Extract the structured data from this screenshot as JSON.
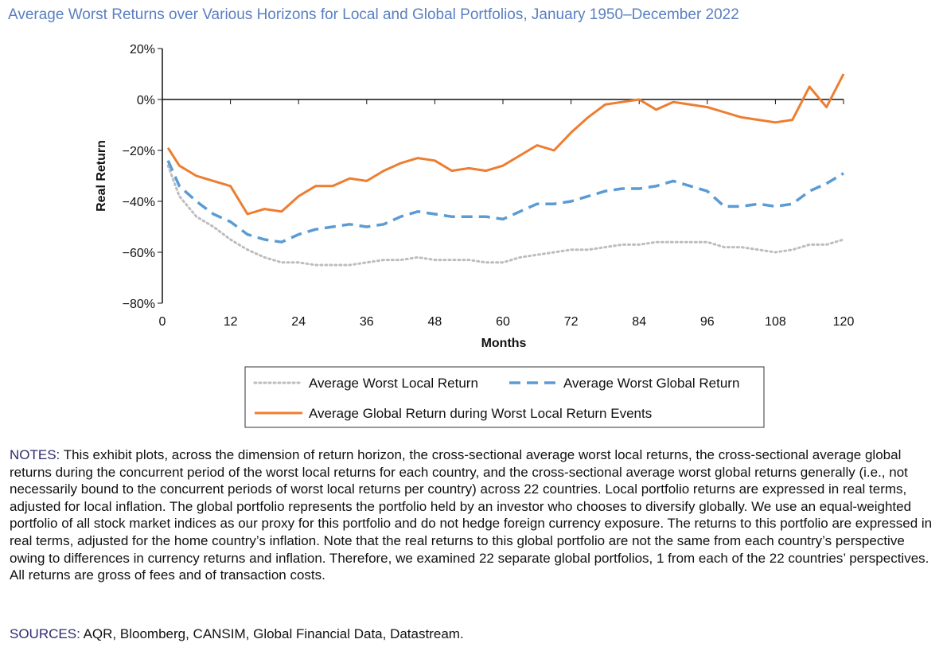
{
  "chart_data": {
    "type": "line",
    "title": "Average Worst Returns over Various Horizons for Local and Global Portfolios, January 1950–December 2022",
    "y_label": "Real Return",
    "x_label": "Months",
    "x": [
      1,
      3,
      6,
      9,
      12,
      15,
      18,
      21,
      24,
      27,
      30,
      33,
      36,
      39,
      42,
      45,
      48,
      51,
      54,
      57,
      60,
      63,
      66,
      69,
      72,
      75,
      78,
      81,
      84,
      87,
      90,
      93,
      96,
      99,
      102,
      105,
      108,
      111,
      114,
      117,
      120
    ],
    "series": [
      {
        "name": "Average Worst Local Return",
        "color": "#bdbdbd",
        "line_style": "dotted",
        "values": [
          -26,
          -38,
          -46,
          -50,
          -55,
          -59,
          -62,
          -64,
          -64,
          -65,
          -65,
          -65,
          -64,
          -63,
          -63,
          -62,
          -63,
          -63,
          -63,
          -64,
          -64,
          -62,
          -61,
          -60,
          -59,
          -59,
          -58,
          -57,
          -57,
          -56,
          -56,
          -56,
          -56,
          -58,
          -58,
          -59,
          -60,
          -59,
          -57,
          -57,
          -55
        ]
      },
      {
        "name": "Average Worst Global Return",
        "color": "#5b9bd5",
        "line_style": "dashed",
        "values": [
          -24,
          -34,
          -40,
          -45,
          -48,
          -53,
          -55,
          -56,
          -53,
          -51,
          -50,
          -49,
          -50,
          -49,
          -46,
          -44,
          -45,
          -46,
          -46,
          -46,
          -47,
          -44,
          -41,
          -41,
          -40,
          -38,
          -36,
          -35,
          -35,
          -34,
          -32,
          -34,
          -36,
          -42,
          -42,
          -41,
          -42,
          -41,
          -36,
          -33,
          -29
        ]
      },
      {
        "name": "Average Global Return during Worst Local Return Events",
        "color": "#ed7d31",
        "line_style": "solid",
        "values": [
          -19,
          -26,
          -30,
          -32,
          -34,
          -45,
          -43,
          -44,
          -38,
          -34,
          -34,
          -31,
          -32,
          -28,
          -25,
          -23,
          -24,
          -28,
          -27,
          -28,
          -26,
          -22,
          -18,
          -20,
          -13,
          -7,
          -2,
          -1,
          0,
          -4,
          -1,
          -2,
          -3,
          -5,
          -7,
          -8,
          -9,
          -8,
          5,
          -3,
          10
        ]
      }
    ],
    "xlim": [
      0,
      120
    ],
    "xticks": [
      0,
      12,
      24,
      36,
      48,
      60,
      72,
      84,
      96,
      108,
      120
    ],
    "ylim": [
      -80,
      20
    ],
    "yticks": [
      {
        "value": 20,
        "label": "20%"
      },
      {
        "value": 0,
        "label": "0%"
      },
      {
        "value": -20,
        "label": "−20%"
      },
      {
        "value": -40,
        "label": "−40%"
      },
      {
        "value": -60,
        "label": "−60%"
      },
      {
        "value": -80,
        "label": "−80%"
      }
    ]
  },
  "notes": {
    "label": "NOTES:",
    "text": "This exhibit plots, across the dimension of return horizon, the cross-sectional average worst local returns, the cross-sectional average global returns during the concurrent period of the worst local returns for each country, and the cross-sectional average worst global returns generally (i.e., not necessarily bound to the concurrent periods of worst local returns per country) across 22 countries. Local portfolio returns are expressed in real terms, adjusted for local inflation. The global portfolio represents the portfolio held by an investor who chooses to diversify globally. We use an equal-weighted portfolio of all stock market indices as our proxy for this portfolio and do not hedge foreign currency exposure. The returns to this portfolio are expressed in real terms, adjusted for the home country’s inflation. Note that the real returns to this global portfolio are not the same from each country’s perspective owing to differences in currency returns and inflation. Therefore, we examined 22 separate global portfolios, 1 from each of the 22 countries’ perspectives. All returns are gross of fees and of transaction costs."
  },
  "sources": {
    "label": "SOURCES:",
    "text": "AQR, Bloomberg, CANSIM, Global Financial Data, Datastream."
  }
}
